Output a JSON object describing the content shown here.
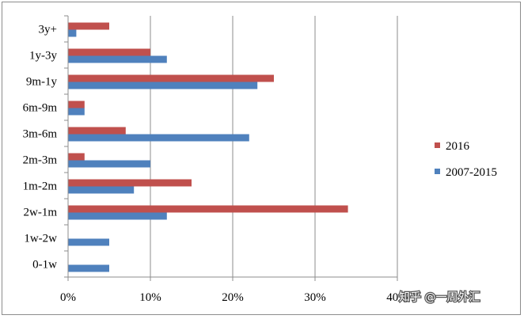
{
  "chart_data": {
    "type": "bar",
    "orientation": "horizontal",
    "categories": [
      "3y+",
      "1y-3y",
      "9m-1y",
      "6m-9m",
      "3m-6m",
      "2m-3m",
      "1m-2m",
      "2w-1m",
      "1w-2w",
      "0-1w"
    ],
    "series": [
      {
        "name": "2016",
        "color": "#c0504d",
        "values": [
          5,
          10,
          25,
          2,
          7,
          2,
          15,
          34,
          0,
          0
        ]
      },
      {
        "name": "2007-2015",
        "color": "#4f81bd",
        "values": [
          1,
          12,
          23,
          2,
          22,
          10,
          8,
          12,
          5,
          5
        ]
      }
    ],
    "xlim": [
      0,
      40
    ],
    "x_ticks": [
      "0%",
      "10%",
      "20%",
      "30%",
      "40%"
    ],
    "grid": true,
    "legend_position": "right",
    "title": "",
    "xlabel": "",
    "ylabel": ""
  },
  "watermark": "知乎 @一周外汇"
}
